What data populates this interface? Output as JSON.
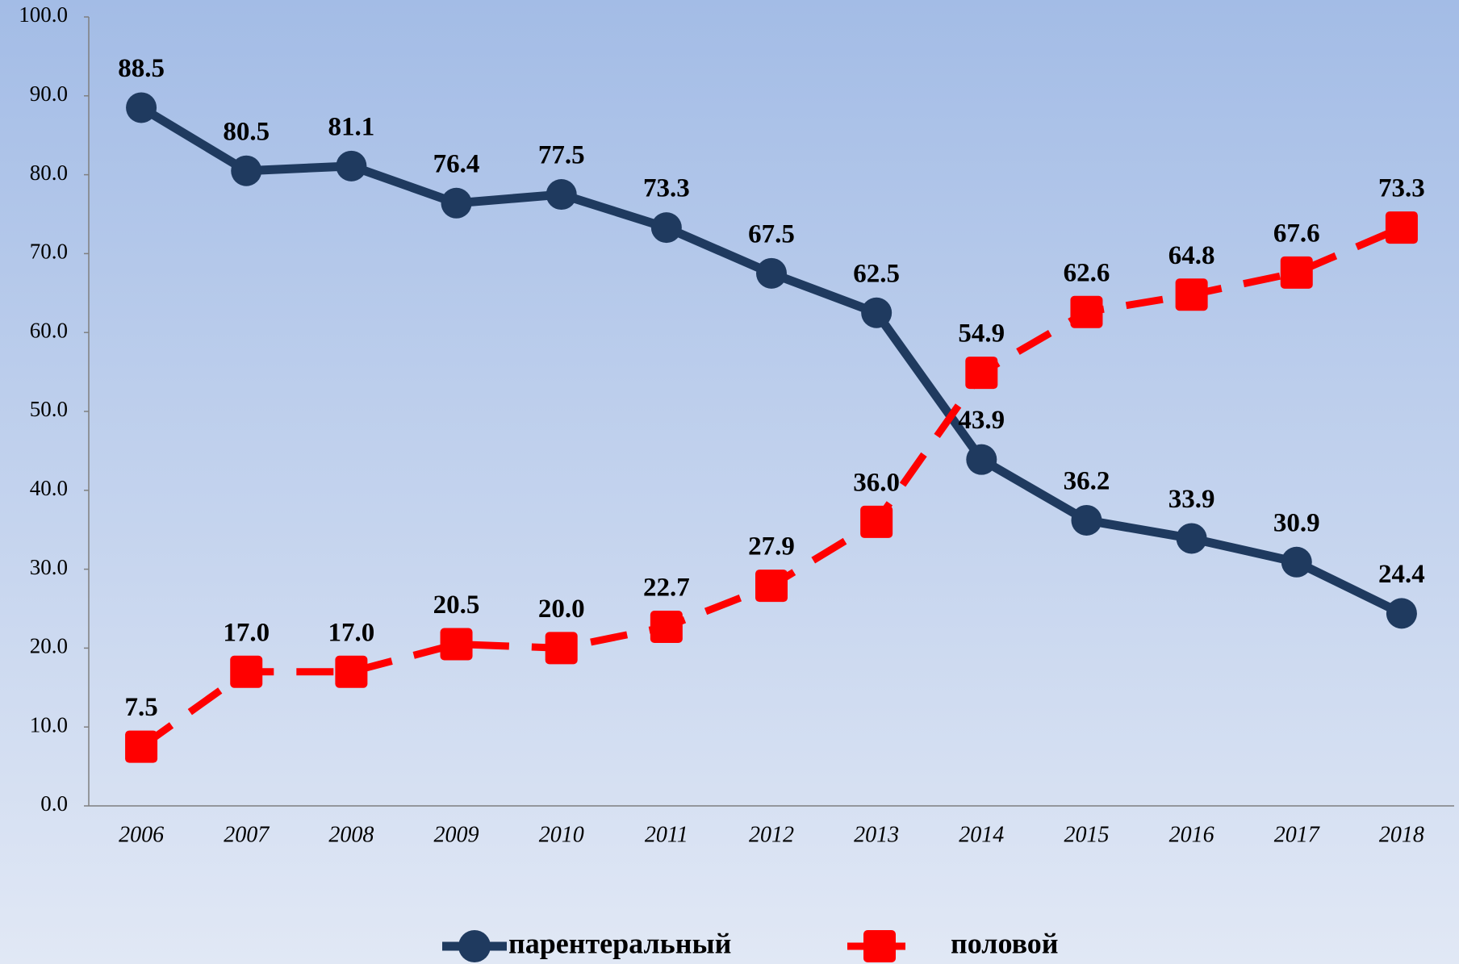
{
  "chart_data": {
    "type": "line",
    "categories": [
      "2006",
      "2007",
      "2008",
      "2009",
      "2010",
      "2011",
      "2012",
      "2013",
      "2014",
      "2015",
      "2016",
      "2017",
      "2018"
    ],
    "series": [
      {
        "name": "парентеральный",
        "color": "#1f3a5f",
        "values": [
          88.5,
          80.5,
          81.1,
          76.4,
          77.5,
          73.3,
          67.5,
          62.5,
          43.9,
          36.2,
          33.9,
          30.9,
          24.4
        ],
        "value_labels": [
          "88.5",
          "80.5",
          "81.1",
          "76.4",
          "77.5",
          "73.3",
          "67.5",
          "62.5",
          "43.9",
          "36.2",
          "33.9",
          "30.9",
          "24.4"
        ]
      },
      {
        "name": "половой",
        "color": "#ff0000",
        "values": [
          7.5,
          17,
          17,
          20.5,
          20,
          22.7,
          27.9,
          36,
          54.9,
          62.6,
          64.8,
          67.6,
          73.3
        ],
        "value_labels": [
          "7.5",
          "17.0",
          "17.0",
          "20.5",
          "20.0",
          "22.7",
          "27.9",
          "36.0",
          "54.9",
          "62.6",
          "64.8",
          "67.6",
          "73.3"
        ]
      }
    ],
    "ylim": [
      0,
      100
    ],
    "yticks": [
      {
        "value": 0,
        "label": "0.0"
      },
      {
        "value": 10,
        "label": "10.0"
      },
      {
        "value": 20,
        "label": "20.0"
      },
      {
        "value": 30,
        "label": "30.0"
      },
      {
        "value": 40,
        "label": "40.0"
      },
      {
        "value": 50,
        "label": "50.0"
      },
      {
        "value": 60,
        "label": "60.0"
      },
      {
        "value": 70,
        "label": "70.0"
      },
      {
        "value": 80,
        "label": "80.0"
      },
      {
        "value": 90,
        "label": "90.0"
      },
      {
        "value": 100,
        "label": "100.0"
      }
    ],
    "grid": false
  }
}
